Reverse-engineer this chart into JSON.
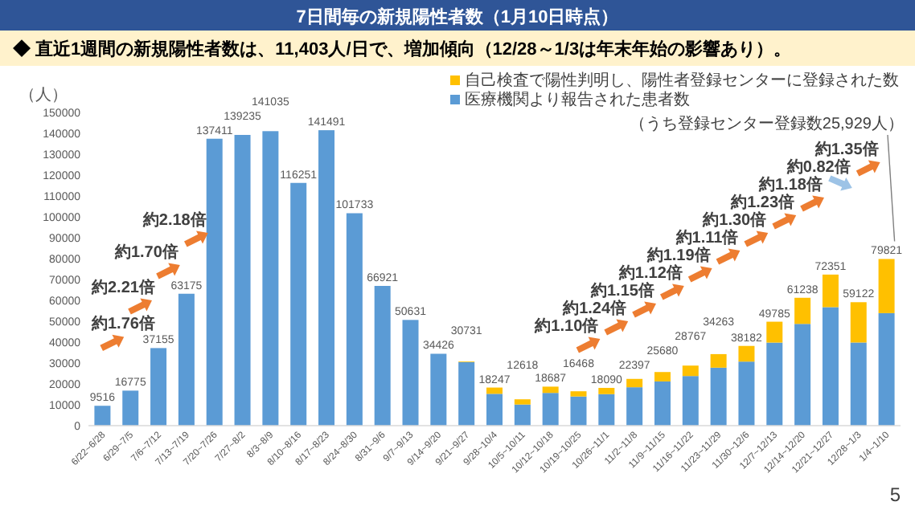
{
  "chart_data": {
    "type": "bar",
    "stacked": true,
    "title": "7日間毎の新規陽性者数（1月10日時点）",
    "subtitle": "◆ 直近1週間の新規陽性者数は、11,403人/日で、増加傾向（12/28～1/3は年末年始の影響あり）。",
    "ylabel": "（人）",
    "categories": [
      "6/22~6/28",
      "6/29~7/5",
      "7/6~7/12",
      "7/13~7/19",
      "7/20~7/26",
      "7/27~8/2",
      "8/3~8/9",
      "8/10~8/16",
      "8/17~8/23",
      "8/24~8/30",
      "8/31~9/6",
      "9/7~9/13",
      "9/14~9/20",
      "9/21~9/27",
      "9/28~10/4",
      "10/5~10/11",
      "10/12~10/18",
      "10/19~10/25",
      "10/26~11/1",
      "11/2~11/8",
      "11/9~11/15",
      "11/16~11/22",
      "11/23~11/29",
      "11/30~12/6",
      "12/7~12/13",
      "12/14~12/20",
      "12/21~12/27",
      "12/28~1/3",
      "1/4~1/10"
    ],
    "series": [
      {
        "name": "医療機関より報告された患者数",
        "color": "#5b9bd5",
        "values": [
          9516,
          16775,
          37155,
          63175,
          137411,
          139235,
          141035,
          116251,
          141491,
          101733,
          66921,
          50631,
          34426,
          30431,
          15247,
          10118,
          15687,
          13968,
          15090,
          18397,
          21180,
          23767,
          27763,
          30682,
          39785,
          48738,
          56751,
          39822,
          53892
        ]
      },
      {
        "name": "自己検査で陽性判明し、陽性者登録センターに登録された数",
        "color": "#ffc000",
        "values": [
          null,
          null,
          null,
          null,
          null,
          null,
          null,
          null,
          null,
          null,
          null,
          null,
          null,
          300,
          3000,
          2500,
          3000,
          2500,
          3000,
          4000,
          4500,
          5000,
          6500,
          7500,
          10000,
          12500,
          15600,
          19300,
          25929
        ]
      }
    ],
    "totals": [
      "9516",
      "16775",
      "37155",
      "63175",
      "137411",
      "139235",
      "141035",
      "116251",
      "141491",
      "101733",
      "66921",
      "50631",
      "34426",
      "30731",
      "18247",
      "12618",
      "18687",
      "16468",
      "18090",
      "22397",
      "25680",
      "28767",
      "34263",
      "38182",
      "49785",
      "61238",
      "72351",
      "59122",
      "79821"
    ],
    "ylim": [
      0,
      150000
    ],
    "yticks": [
      0,
      10000,
      20000,
      30000,
      40000,
      50000,
      60000,
      70000,
      80000,
      90000,
      100000,
      110000,
      120000,
      130000,
      140000,
      150000
    ],
    "grid": false,
    "legend": "top right",
    "annotations": [
      "約1.76倍",
      "約2.21倍",
      "約1.70倍",
      "約2.18倍",
      "約1.10倍",
      "約1.24倍",
      "約1.15倍",
      "約1.12倍",
      "約1.19倍",
      "約1.11倍",
      "約1.30倍",
      "約1.23倍",
      "約1.18倍",
      "約0.82倍",
      "約1.35倍",
      "（うち登録センター登録数25,929人）",
      "5"
    ]
  }
}
